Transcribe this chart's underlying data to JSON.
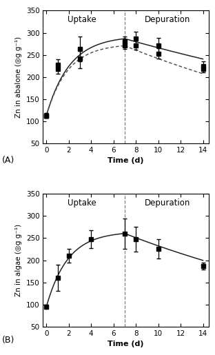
{
  "panel_A": {
    "title_uptake": "Uptake",
    "title_depuration": "Depuration",
    "ylabel": "Zn in abalone (◎g g⁻¹)",
    "xlabel": "Time (d)",
    "label": "(A)",
    "xlim": [
      -0.3,
      14.5
    ],
    "ylim": [
      50,
      350
    ],
    "yticks": [
      50,
      100,
      150,
      200,
      250,
      300,
      350
    ],
    "xticks": [
      0,
      2,
      4,
      6,
      8,
      10,
      12,
      14
    ],
    "vline_x": 7,
    "series1": {
      "x": [
        0,
        1,
        3,
        7,
        8,
        10,
        14
      ],
      "y": [
        113,
        228,
        263,
        281,
        287,
        271,
        225
      ],
      "yerr": [
        5,
        12,
        28,
        10,
        15,
        18,
        10
      ]
    },
    "series2": {
      "x": [
        0,
        1,
        3,
        7,
        8,
        10,
        14
      ],
      "y": [
        113,
        218,
        242,
        271,
        272,
        253,
        218
      ],
      "yerr": [
        5,
        10,
        22,
        8,
        10,
        12,
        8
      ]
    },
    "curve1_uptake_params": {
      "C0": 113,
      "Css": 293,
      "ku": 0.48
    },
    "curve1_depuration_params": {
      "ke": 0.025
    },
    "curve2_uptake_params": {
      "C0": 113,
      "Css": 275,
      "ku": 0.52
    },
    "curve2_depuration_params": {
      "ke": 0.038
    }
  },
  "panel_B": {
    "title_uptake": "Uptake",
    "title_depuration": "Depuration",
    "ylabel": "Zn in algae (◎g g⁻¹)",
    "xlabel": "Time (d)",
    "label": "(B)",
    "xlim": [
      -0.3,
      14.5
    ],
    "ylim": [
      50,
      350
    ],
    "yticks": [
      50,
      100,
      150,
      200,
      250,
      300,
      350
    ],
    "xticks": [
      0,
      2,
      4,
      6,
      8,
      10,
      12,
      14
    ],
    "vline_x": 7,
    "series1": {
      "x": [
        0,
        1,
        2,
        4,
        7,
        8,
        10,
        14
      ],
      "y": [
        95,
        160,
        210,
        248,
        260,
        248,
        226,
        187
      ],
      "yerr": [
        5,
        30,
        15,
        20,
        35,
        28,
        22,
        8
      ]
    },
    "curve1_uptake_params": {
      "C0": 95,
      "Css": 265,
      "ku": 0.52
    },
    "curve1_depuration_params": {
      "ke": 0.038
    }
  },
  "marker": "s",
  "markersize": 4.5,
  "linewidth": 1.1,
  "elinewidth": 0.9,
  "capsize": 2.0,
  "line_color": "#222222",
  "dotted_color": "#555555",
  "background": "#ffffff"
}
